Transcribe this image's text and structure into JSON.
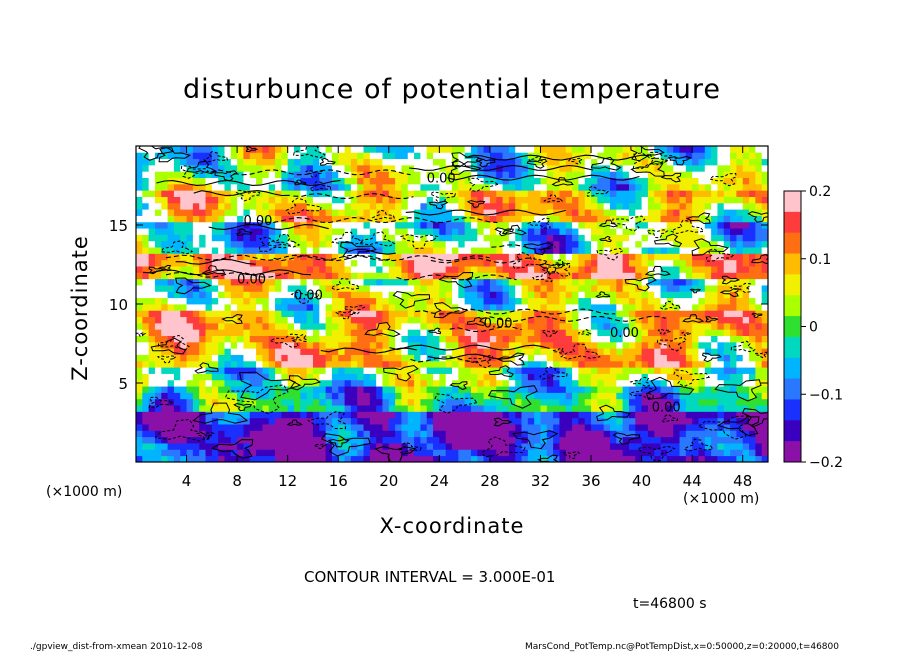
{
  "chart_data": {
    "type": "heatmap",
    "title": "disturbunce of potential temperature",
    "xlabel": "X-coordinate",
    "ylabel": "Z-coordinate",
    "x_unit": "(×1000 m)",
    "xlim": [
      0,
      50
    ],
    "ylim": [
      0,
      20
    ],
    "x_ticks": [
      4,
      8,
      12,
      16,
      20,
      24,
      28,
      32,
      36,
      40,
      44,
      48
    ],
    "y_ticks": [
      5,
      10,
      15
    ],
    "colorbar": {
      "range": [
        -0.2,
        0.2
      ],
      "tick_values": [
        0.2,
        0.1,
        0,
        -0.1,
        -0.2
      ],
      "tick_labels": [
        "0.2",
        "0.1",
        "0",
        "−0.1",
        "−0.2"
      ],
      "colors": [
        "#ffc4cc",
        "#ff3c3c",
        "#ff6e12",
        "#ffbb00",
        "#f0f000",
        "#aaff00",
        "#30e030",
        "#00d8c0",
        "#00b4ff",
        "#2a78ff",
        "#1a30ff",
        "#3a00c0",
        "#8a10a8"
      ]
    },
    "contour_labels": [
      "0.00",
      "0.00",
      "0.00",
      "0.00",
      "0.00",
      "0.00",
      "0.00"
    ],
    "contour_interval_text": "CONTOUR INTERVAL = 3.000E-01",
    "time_text": "t=46800 s"
  },
  "footer": {
    "left": "./gpview_dist-from-xmean   2010-12-08",
    "right": "MarsCond_PotTemp.nc@PotTempDist,x=0:50000,z=0:20000,t=46800"
  }
}
